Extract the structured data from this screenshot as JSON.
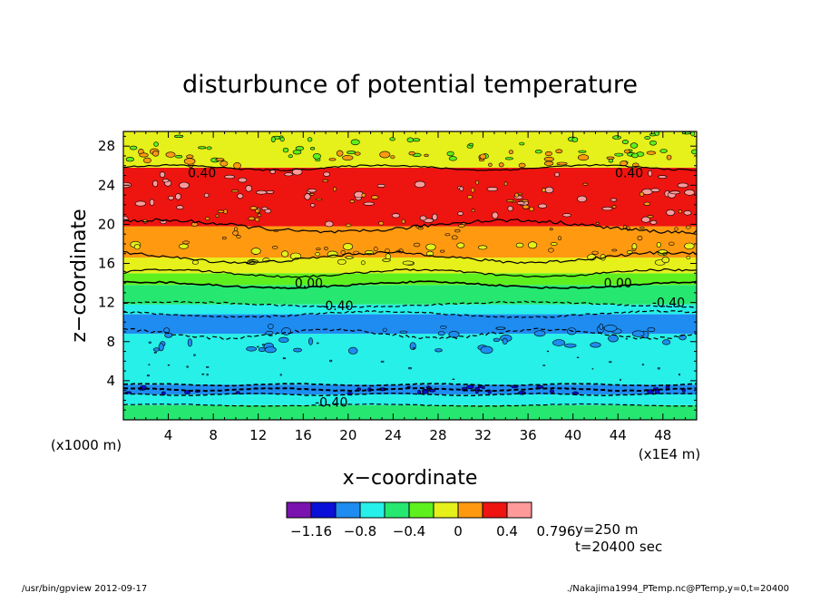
{
  "chart_data": {
    "type": "heatmap",
    "title": "disturbunce of potential temperature",
    "xlabel": "x−coordinate",
    "ylabel": "z−coordinate",
    "x_unit_note": "(x1E4 m)",
    "y_unit_note": "(x1000 m)",
    "xlim": [
      0,
      51
    ],
    "ylim": [
      0,
      29.5
    ],
    "x_ticks": [
      4,
      8,
      12,
      16,
      20,
      24,
      28,
      32,
      36,
      40,
      44,
      48
    ],
    "y_ticks": [
      4,
      8,
      12,
      16,
      20,
      24,
      28
    ],
    "levels": [
      -1.16,
      -0.8,
      -0.4,
      0,
      0.4,
      0.796
    ],
    "colorbar_colors": [
      "#7a12b0",
      "#0a10d8",
      "#1e8cf0",
      "#26f0e8",
      "#26e870",
      "#5ef01e",
      "#e6f01a",
      "#ff9a10",
      "#ee1410",
      "#ff9a9a"
    ],
    "layer_bands": [
      {
        "z": [
          0,
          1.5
        ],
        "color": "#26e870"
      },
      {
        "z": [
          1.5,
          2.6
        ],
        "color": "#26f0e8"
      },
      {
        "z": [
          2.6,
          3.6
        ],
        "color": "#1e8cf0"
      },
      {
        "z": [
          3.6,
          8.8
        ],
        "color": "#26f0e8"
      },
      {
        "z": [
          8.8,
          10.8
        ],
        "color": "#1e8cf0"
      },
      {
        "z": [
          10.8,
          11.8
        ],
        "color": "#26f0e8"
      },
      {
        "z": [
          11.8,
          13.8
        ],
        "color": "#26e870"
      },
      {
        "z": [
          13.8,
          15.0
        ],
        "color": "#5ef01e"
      },
      {
        "z": [
          15.0,
          16.6
        ],
        "color": "#e6f01a"
      },
      {
        "z": [
          16.6,
          19.8
        ],
        "color": "#ff9a10"
      },
      {
        "z": [
          19.8,
          25.8
        ],
        "color": "#ee1410"
      },
      {
        "z": [
          25.8,
          29.5
        ],
        "color": "#e6f01a"
      }
    ],
    "contour_labels": [
      {
        "text": "0.40",
        "x": 7,
        "z": 25.3
      },
      {
        "text": "0.40",
        "x": 45,
        "z": 25.3
      },
      {
        "text": "0.00",
        "x": 16.5,
        "z": 14.0
      },
      {
        "text": "0.00",
        "x": 44,
        "z": 14.0
      },
      {
        "text": "-0.40",
        "x": 19,
        "z": 11.7
      },
      {
        "text": "-0.40",
        "x": 48.5,
        "z": 12.0
      },
      {
        "text": "-0.40",
        "x": 18.5,
        "z": 1.8
      }
    ]
  },
  "colorbar_labels": [
    "−1.16",
    "−0.8",
    "−0.4",
    "0",
    "0.4",
    "0.796"
  ],
  "annotations": {
    "y_value": "y=250  m",
    "t_value": "t=20400 sec"
  },
  "footer": {
    "left": "/usr/bin/gpview   2012-09-17",
    "right": "./Nakajima1994_PTemp.nc@PTemp,y=0,t=20400"
  }
}
